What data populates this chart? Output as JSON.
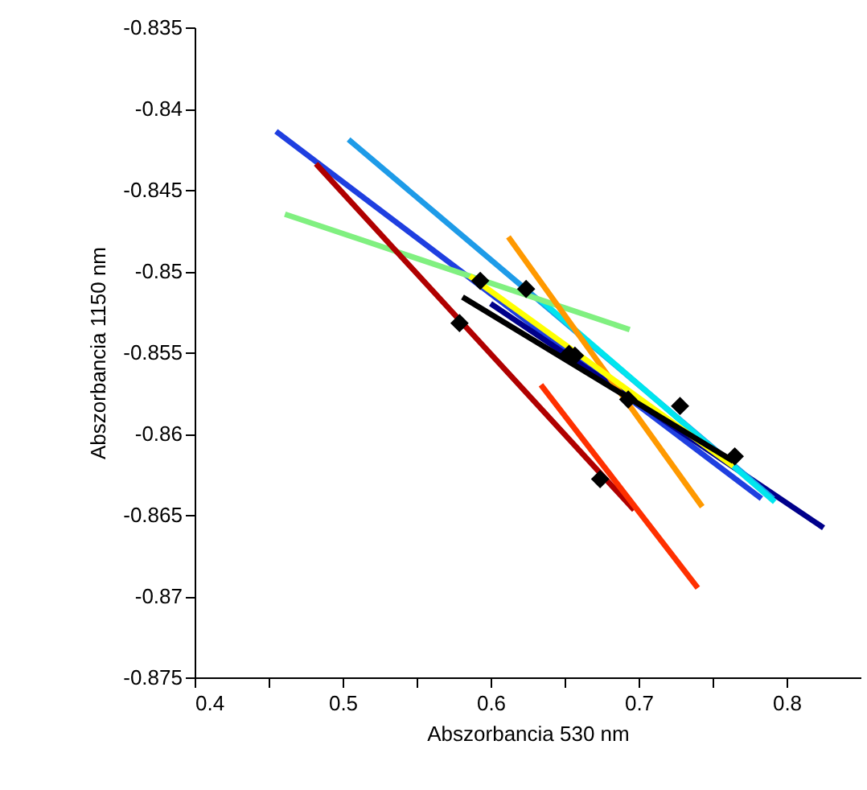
{
  "chart_data": {
    "type": "line",
    "xlabel": "Abszorbancia 530 nm",
    "ylabel": "Abszorbancia 1150 nm",
    "xlim": [
      0.4,
      0.85
    ],
    "xticks": [
      0.4,
      {
        "value": 0.45,
        "label": null
      },
      0.5,
      {
        "value": 0.55,
        "label": null
      },
      0.6,
      {
        "value": 0.65,
        "label": null
      },
      0.7,
      {
        "value": 0.75,
        "label": null
      },
      0.8
    ],
    "ylim": [
      -0.875,
      -0.835
    ],
    "yticks": [
      -0.875,
      -0.87,
      -0.865,
      -0.86,
      -0.855,
      -0.85,
      -0.845,
      -0.84,
      -0.835
    ],
    "grid": false,
    "marker": "none",
    "line_style": "solid",
    "series": [
      {
        "color": "#1f3fe0",
        "x": [
          0.455,
          0.783
        ],
        "values": [
          -0.8414,
          -0.864
        ]
      },
      {
        "color": "#00008b",
        "x": [
          0.6,
          0.825
        ],
        "values": [
          -0.852,
          -0.8658
        ]
      },
      {
        "color": "#1e9be8",
        "x": [
          0.504,
          0.791
        ],
        "values": [
          -0.8419,
          -0.864
        ]
      },
      {
        "color": "#00e5ee",
        "x": [
          0.634,
          0.792
        ],
        "values": [
          -0.8518,
          -0.8642
        ]
      },
      {
        "color": "#80f080",
        "x": [
          0.461,
          0.694
        ],
        "values": [
          -0.8465,
          -0.8536
        ]
      },
      {
        "color": "#b00000",
        "x": [
          0.482,
          0.697
        ],
        "values": [
          -0.8434,
          -0.8647
        ]
      },
      {
        "color": "#ff3000",
        "x": [
          0.634,
          0.74
        ],
        "values": [
          -0.857,
          -0.8695
        ]
      },
      {
        "color": "#ff9900",
        "x": [
          0.612,
          0.743
        ],
        "values": [
          -0.8479,
          -0.8645
        ]
      },
      {
        "color": "#ffff00",
        "x": [
          0.586,
          0.764
        ],
        "values": [
          -0.8503,
          -0.862
        ]
      },
      {
        "color": "#000000",
        "x": [
          0.581,
          0.764
        ],
        "values": [
          -0.8516,
          -0.8617
        ]
      },
      {
        "type": "scatter",
        "color": "#000000",
        "marker": "diamond",
        "x": [
          0.579,
          0.593,
          0.624,
          0.653,
          0.657,
          0.674,
          0.693,
          0.728,
          0.765
        ],
        "values": [
          -0.8532,
          -0.8506,
          -0.8511,
          -0.8551,
          -0.8552,
          -0.8628,
          -0.8579,
          -0.8583,
          -0.8614
        ]
      }
    ]
  }
}
